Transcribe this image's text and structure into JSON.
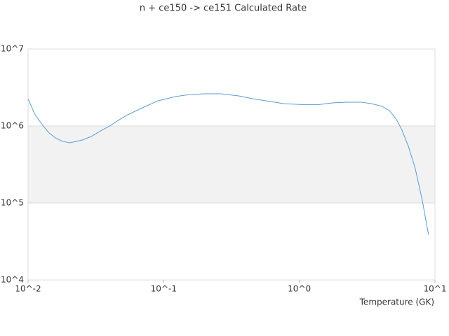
{
  "chart_data": {
    "type": "line",
    "title": "n + ce150 -> ce151 Calculated Rate",
    "x_label": "Temperature (GK)",
    "log_x": true,
    "log_y": true,
    "grid": true,
    "xlim": [
      0.01,
      10
    ],
    "ylim": [
      10000,
      10000000
    ],
    "xticks": [
      {
        "value": 0.01,
        "label": "10^-2"
      },
      {
        "value": 0.1,
        "label": "10^-1"
      },
      {
        "value": 1,
        "label": "10^0"
      },
      {
        "value": 10,
        "label": "10^1"
      }
    ],
    "yticks": [
      {
        "value": 10000,
        "label": "10^4"
      },
      {
        "value": 100000,
        "label": "10^5"
      },
      {
        "value": 1000000,
        "label": "10^6"
      },
      {
        "value": 10000000,
        "label": "10^7"
      }
    ],
    "series": [
      {
        "color": "#5b9bd5",
        "x": [
          0.01,
          0.0112,
          0.0127,
          0.0143,
          0.0161,
          0.0181,
          0.0204,
          0.0253,
          0.0292,
          0.0349,
          0.0408,
          0.0443,
          0.053,
          0.0715,
          0.0905,
          0.122,
          0.155,
          0.197,
          0.264,
          0.357,
          0.452,
          0.572,
          0.771,
          1.04,
          1.4,
          1.78,
          2.25,
          2.85,
          3.41,
          4.08,
          4.6,
          5.18,
          5.69,
          6.34,
          7.14,
          8.04,
          8.96
        ],
        "values": [
          2260000,
          1430000,
          1040000,
          810000,
          690000,
          630000,
          605000,
          660000,
          730000,
          880000,
          1020000,
          1130000,
          1370000,
          1760000,
          2120000,
          2410000,
          2560000,
          2620000,
          2620000,
          2460000,
          2260000,
          2120000,
          1950000,
          1900000,
          1900000,
          2000000,
          2040000,
          2040000,
          1950000,
          1800000,
          1590000,
          1230000,
          900000,
          556000,
          285000,
          111000,
          39000
        ]
      }
    ]
  }
}
